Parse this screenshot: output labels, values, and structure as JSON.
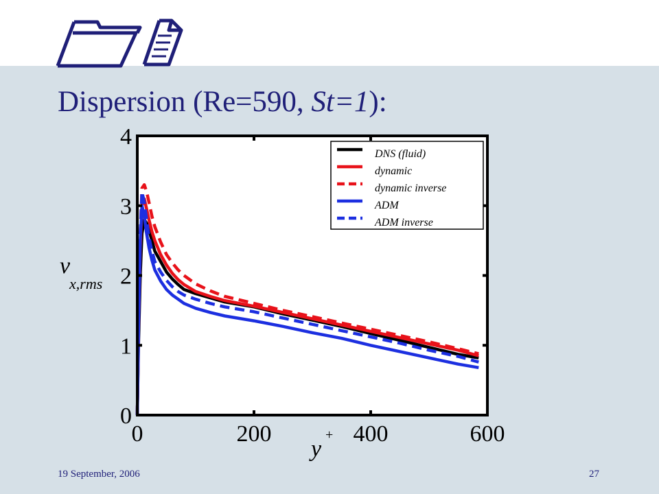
{
  "slide": {
    "title_main": "Dispersion (Re=590, ",
    "title_italic": "St=1",
    "title_end": "):",
    "footer_date": "19 September, 2006",
    "page_number": "27",
    "accent": "#1f1f78",
    "background": "#d6e0e7"
  },
  "icons": [
    "folder-icon",
    "document-icon"
  ],
  "chart_data": {
    "type": "line",
    "xlabel": "y",
    "xlabel_superscript": "+",
    "ylabel": "v",
    "ylabel_subscript": "x,rms",
    "xlim": [
      0,
      600
    ],
    "ylim": [
      0,
      4
    ],
    "xticks": [
      0,
      200,
      400,
      600
    ],
    "yticks": [
      0,
      1,
      2,
      3,
      4
    ],
    "grid": false,
    "legend_position": "top-right",
    "series": [
      {
        "name": "DNS (fluid)",
        "color": "#000000",
        "dash": "solid",
        "x": [
          0,
          2,
          5,
          8,
          12,
          16,
          20,
          25,
          30,
          40,
          50,
          60,
          70,
          80,
          100,
          125,
          150,
          200,
          250,
          300,
          350,
          400,
          450,
          500,
          550,
          585
        ],
        "y": [
          0,
          1.0,
          2.0,
          2.6,
          2.8,
          2.75,
          2.65,
          2.5,
          2.35,
          2.2,
          2.05,
          1.95,
          1.87,
          1.8,
          1.74,
          1.68,
          1.62,
          1.55,
          1.45,
          1.36,
          1.27,
          1.17,
          1.07,
          0.97,
          0.87,
          0.82
        ]
      },
      {
        "name": "dynamic",
        "color": "#e8121a",
        "dash": "solid",
        "x": [
          0,
          2,
          5,
          8,
          12,
          16,
          20,
          25,
          30,
          40,
          50,
          60,
          70,
          80,
          100,
          125,
          150,
          200,
          250,
          300,
          350,
          400,
          450,
          500,
          550,
          585
        ],
        "y": [
          0,
          1.2,
          2.4,
          3.0,
          3.1,
          2.95,
          2.8,
          2.63,
          2.5,
          2.3,
          2.15,
          2.03,
          1.94,
          1.87,
          1.77,
          1.7,
          1.64,
          1.56,
          1.47,
          1.38,
          1.29,
          1.2,
          1.11,
          1.02,
          0.93,
          0.85
        ]
      },
      {
        "name": "dynamic inverse",
        "color": "#e8121a",
        "dash": "dashed",
        "x": [
          0,
          2,
          5,
          8,
          12,
          16,
          20,
          25,
          30,
          40,
          50,
          60,
          70,
          80,
          100,
          125,
          150,
          200,
          250,
          300,
          350,
          400,
          450,
          500,
          550,
          585
        ],
        "y": [
          0,
          1.3,
          2.6,
          3.25,
          3.3,
          3.2,
          3.05,
          2.85,
          2.7,
          2.48,
          2.3,
          2.18,
          2.08,
          2.0,
          1.88,
          1.78,
          1.7,
          1.6,
          1.5,
          1.41,
          1.32,
          1.23,
          1.14,
          1.05,
          0.95,
          0.88
        ]
      },
      {
        "name": "ADM",
        "color": "#1c2fe0",
        "dash": "solid",
        "x": [
          0,
          2,
          5,
          8,
          12,
          16,
          20,
          25,
          30,
          40,
          50,
          60,
          70,
          80,
          100,
          125,
          150,
          200,
          250,
          300,
          350,
          400,
          450,
          500,
          550,
          585
        ],
        "y": [
          0,
          1.2,
          2.5,
          3.0,
          2.85,
          2.6,
          2.4,
          2.22,
          2.08,
          1.92,
          1.8,
          1.72,
          1.66,
          1.6,
          1.53,
          1.47,
          1.42,
          1.35,
          1.27,
          1.18,
          1.1,
          1.0,
          0.91,
          0.82,
          0.73,
          0.68
        ]
      },
      {
        "name": "ADM inverse",
        "color": "#1c2fe0",
        "dash": "dashed",
        "x": [
          0,
          2,
          5,
          8,
          12,
          16,
          20,
          25,
          30,
          40,
          50,
          60,
          70,
          80,
          100,
          125,
          150,
          200,
          250,
          300,
          350,
          400,
          450,
          500,
          550,
          585
        ],
        "y": [
          0,
          1.3,
          2.6,
          3.2,
          3.05,
          2.8,
          2.55,
          2.35,
          2.2,
          2.05,
          1.93,
          1.84,
          1.77,
          1.72,
          1.66,
          1.6,
          1.55,
          1.48,
          1.39,
          1.3,
          1.21,
          1.12,
          1.03,
          0.93,
          0.84,
          0.76
        ]
      }
    ]
  }
}
